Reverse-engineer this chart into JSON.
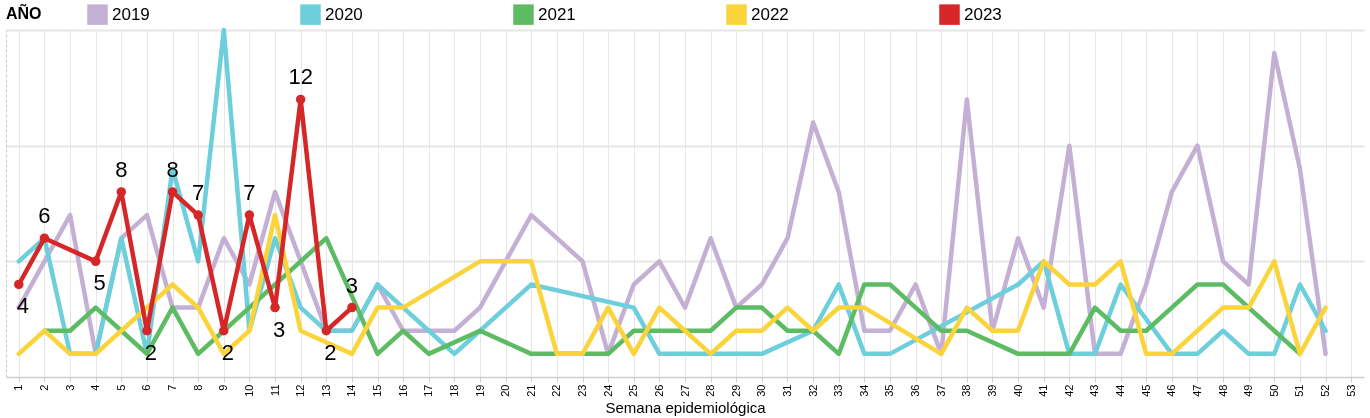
{
  "chart_data": {
    "type": "line",
    "xlabel": "Semana epidemiológica",
    "legend_title": "AÑO",
    "legend": "top",
    "grid": true,
    "ylim": [
      0,
      15
    ],
    "yticks": [
      {
        "value": 0,
        "label": null
      },
      {
        "value": 5,
        "label": null
      },
      {
        "value": 10,
        "label": null
      },
      {
        "value": 15,
        "label": null
      }
    ],
    "tick_labels": "x",
    "line_style": "solid",
    "categories": [
      "1",
      "2",
      "3",
      "4",
      "5",
      "6",
      "7",
      "8",
      "9",
      "10",
      "11",
      "12",
      "13",
      "14",
      "15",
      "16",
      "17",
      "18",
      "19",
      "20",
      "21",
      "22",
      "23",
      "24",
      "25",
      "26",
      "27",
      "28",
      "29",
      "30",
      "31",
      "32",
      "33",
      "34",
      "35",
      "36",
      "37",
      "38",
      "39",
      "40",
      "41",
      "42",
      "43",
      "44",
      "45",
      "46",
      "47",
      "48",
      "49",
      "50",
      "51",
      "52",
      "53"
    ],
    "series": [
      {
        "name": "2019",
        "color": "#c5b0d5",
        "marker": "none",
        "values": [
          3,
          5,
          7,
          1,
          6,
          7,
          3,
          3,
          6,
          4,
          8,
          5,
          2,
          2,
          4,
          2,
          2,
          2,
          3,
          5,
          7,
          6,
          5,
          1,
          4,
          5,
          3,
          6,
          3,
          4,
          6,
          11,
          8,
          2,
          2,
          4,
          1,
          12,
          2,
          6,
          3,
          10,
          1,
          1,
          4,
          8,
          10,
          5,
          4,
          14,
          9,
          1,
          null
        ]
      },
      {
        "name": "2020",
        "color": "#6ccfdb",
        "marker": "none",
        "values": [
          5,
          6,
          1,
          1,
          6,
          1,
          9,
          5,
          15,
          2,
          6,
          3,
          2,
          2,
          4,
          3,
          2,
          1,
          2,
          3,
          4,
          null,
          null,
          null,
          3,
          1,
          1,
          1,
          1,
          1,
          null,
          2,
          4,
          1,
          1,
          null,
          null,
          null,
          null,
          4,
          5,
          1,
          1,
          4,
          null,
          1,
          1,
          2,
          1,
          1,
          4,
          2,
          null
        ]
      },
      {
        "name": "2021",
        "color": "#5dbb63",
        "marker": "none",
        "values": [
          null,
          2,
          2,
          3,
          2,
          1,
          3,
          1,
          2,
          3,
          4,
          5,
          6,
          null,
          1,
          2,
          1,
          null,
          2,
          null,
          1,
          1,
          1,
          1,
          2,
          2,
          2,
          2,
          3,
          3,
          2,
          2,
          1,
          4,
          4,
          3,
          2,
          2,
          null,
          1,
          1,
          1,
          3,
          2,
          2,
          3,
          4,
          4,
          3,
          2,
          1,
          null,
          null
        ]
      },
      {
        "name": "2022",
        "color": "#fbd33a",
        "marker": "none",
        "values": [
          1,
          2,
          1,
          1,
          2,
          3,
          4,
          3,
          1,
          2,
          7,
          2,
          null,
          1,
          3,
          3,
          null,
          null,
          5,
          5,
          5,
          1,
          1,
          3,
          1,
          3,
          2,
          1,
          2,
          2,
          3,
          2,
          3,
          3,
          null,
          null,
          1,
          3,
          2,
          2,
          5,
          4,
          4,
          5,
          1,
          1,
          2,
          3,
          3,
          5,
          1,
          3,
          null
        ]
      },
      {
        "name": "2023",
        "color": "#d62728",
        "marker": "circle",
        "values": [
          4,
          6,
          null,
          5,
          8,
          2,
          8,
          7,
          2,
          7,
          3,
          12,
          2,
          3,
          null,
          null,
          null,
          null,
          null,
          null,
          null,
          null,
          null,
          null,
          null,
          null,
          null,
          null,
          null,
          null,
          null,
          null,
          null,
          null,
          null,
          null,
          null,
          null,
          null,
          null,
          null,
          null,
          null,
          null,
          null,
          null,
          null,
          null,
          null,
          null,
          null,
          null,
          null
        ],
        "value_labels": [
          "4",
          "6",
          null,
          "5",
          "8",
          "2",
          "8",
          "7",
          "2",
          "7",
          "3",
          "12",
          "2",
          "3",
          null,
          null,
          null,
          null,
          null,
          null,
          null,
          null,
          null,
          null,
          null,
          null,
          null,
          null,
          null,
          null,
          null,
          null,
          null,
          null,
          null,
          null,
          null,
          null,
          null,
          null,
          null,
          null,
          null,
          null,
          null,
          null,
          null,
          null,
          null,
          null,
          null,
          null,
          null
        ]
      }
    ]
  }
}
